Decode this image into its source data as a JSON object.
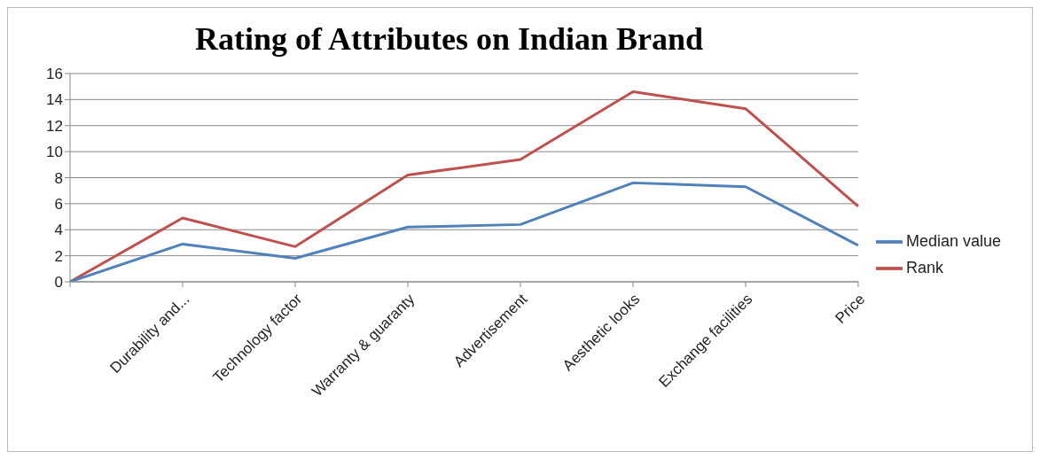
{
  "chart_data": {
    "type": "line",
    "title": "Rating of Attributes on Indian Brand",
    "categories": [
      null,
      "Durability and...",
      "Technology factor",
      "Warranty & guaranty",
      "Advertisement",
      "Aesthetic looks",
      "Exchange facilities",
      "Price"
    ],
    "series": [
      {
        "name": "Rank",
        "color": "#c0504d",
        "values": [
          0,
          4.9,
          2.7,
          8.2,
          9.4,
          14.6,
          13.3,
          5.8
        ]
      },
      {
        "name": "Median value",
        "color": "#4f81bd",
        "values": [
          0,
          2.9,
          1.8,
          4.2,
          4.4,
          7.6,
          7.3,
          2.8
        ]
      }
    ],
    "ylim": [
      0,
      16
    ],
    "yticks": [
      0,
      2,
      4,
      6,
      8,
      10,
      12,
      14,
      16
    ],
    "grid": "y",
    "legend": "right",
    "marker": "none",
    "line_style": "solid"
  }
}
